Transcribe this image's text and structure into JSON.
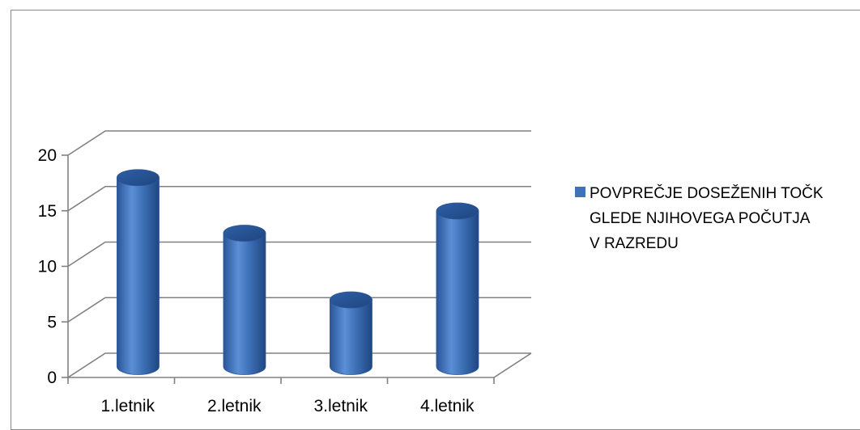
{
  "chart_data": {
    "type": "bar",
    "style": "3d-cylinder",
    "categories": [
      "1.letnik",
      "2.letnik",
      "3.letnik",
      "4.letnik"
    ],
    "series": [
      {
        "name": "POVPREČJE DOSEŽENIH TOČK GLEDE NJIHOVEGA POČUTJA V RAZREDU",
        "values": [
          17,
          12,
          6,
          14
        ],
        "color": "#3f72b8"
      }
    ],
    "ylim": [
      0,
      20
    ],
    "yticks": [
      "0",
      "5",
      "10",
      "15",
      "20"
    ],
    "grid": true,
    "legend_position": "right",
    "legend_lines": [
      "POVPREČJE DOSEŽENIH TOČK",
      "GLEDE NJIHOVEGA POČUTJA",
      "V RAZREDU"
    ]
  }
}
